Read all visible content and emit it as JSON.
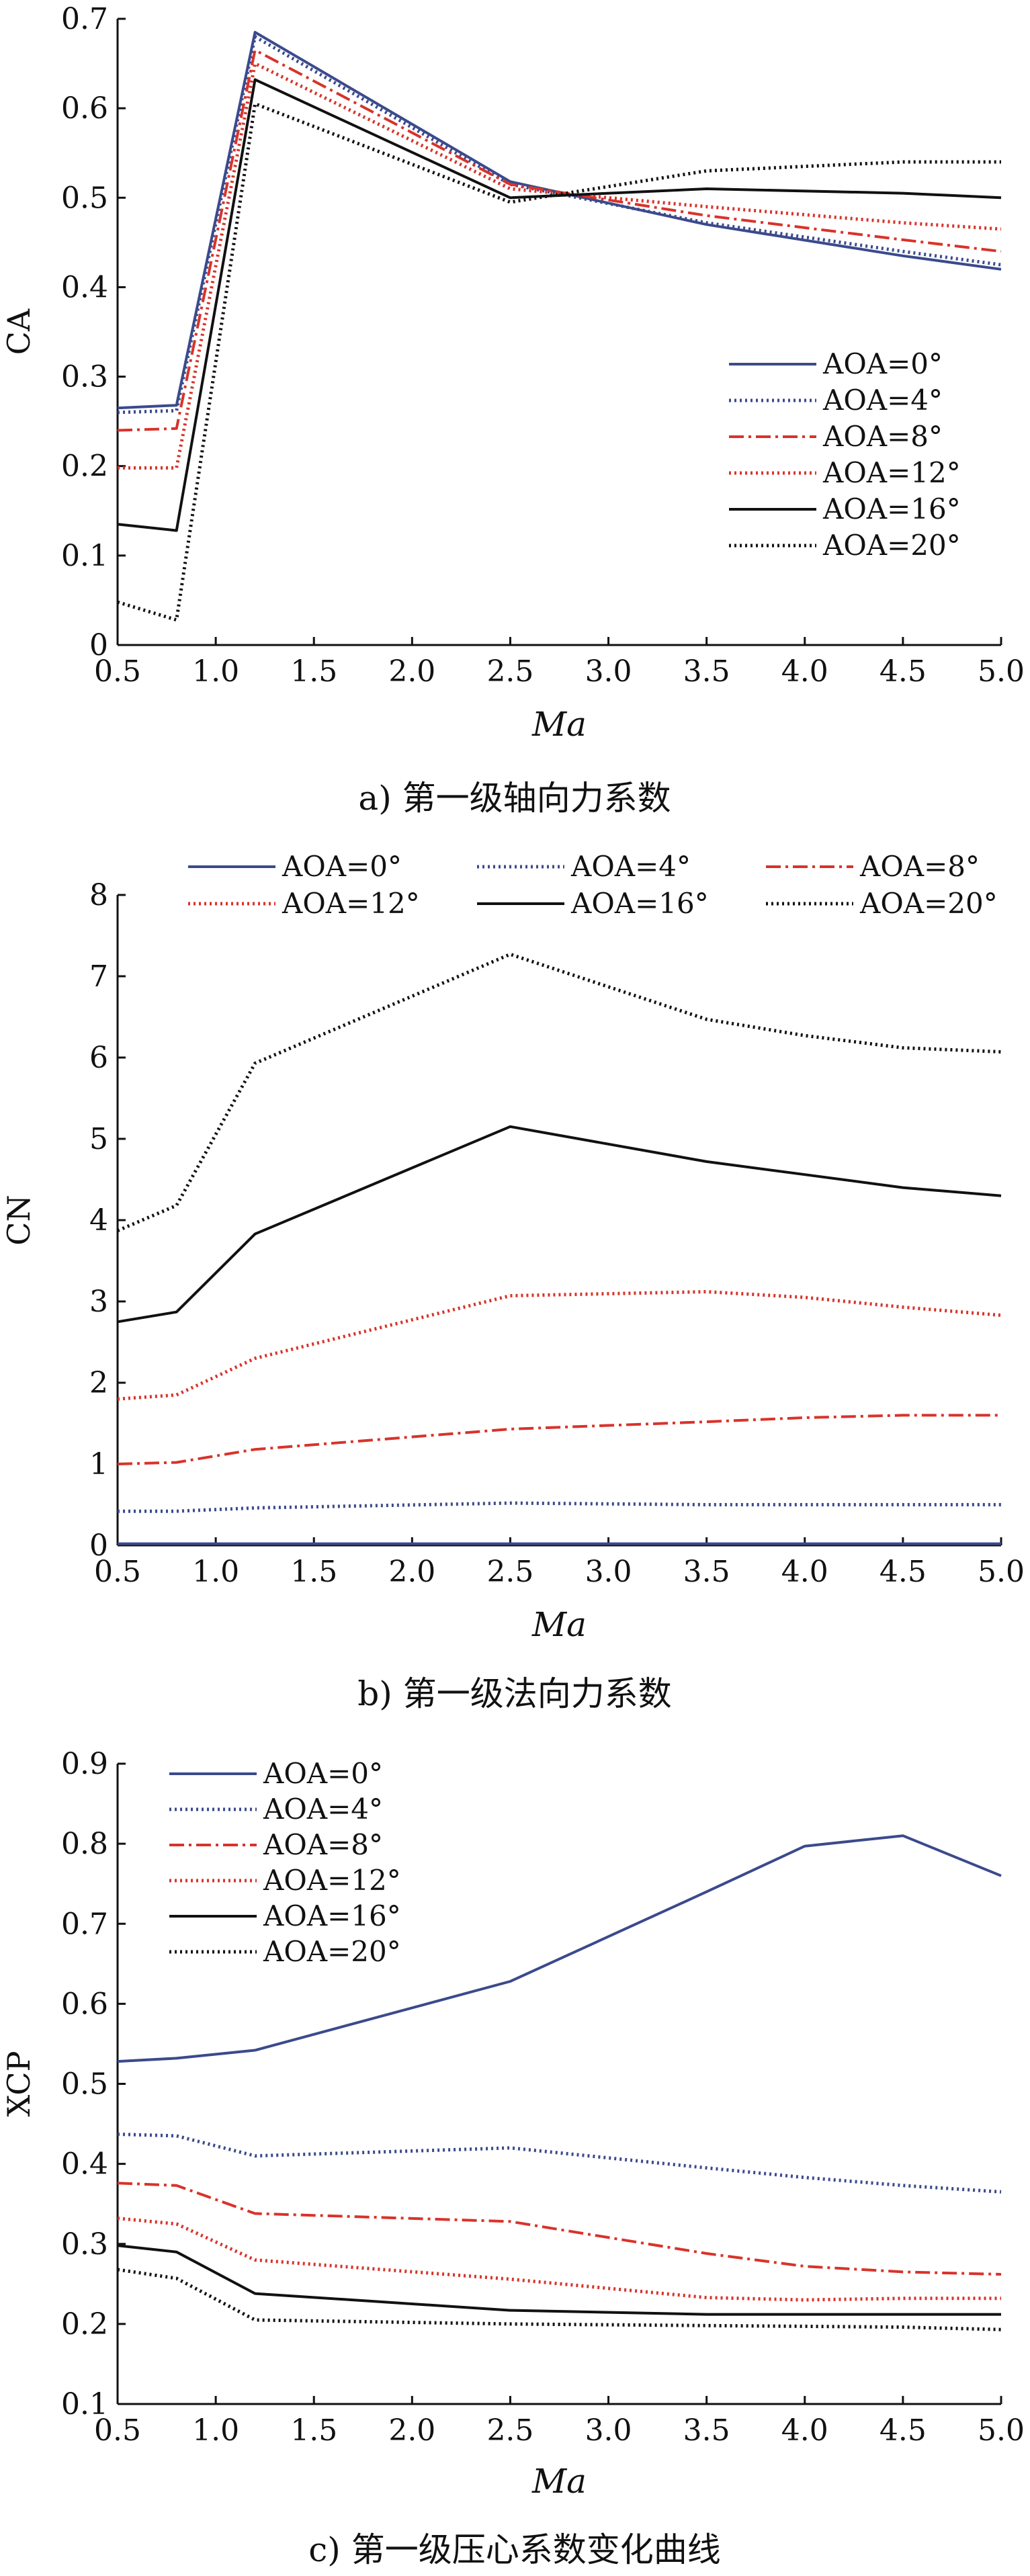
{
  "styles": {
    "AOA=0°": {
      "color": "#3b4a8c",
      "dash": "solid"
    },
    "AOA=4°": {
      "color": "#3b4a8c",
      "dash": "dotted"
    },
    "AOA=8°": {
      "color": "#d8332a",
      "dash": "dashdot"
    },
    "AOA=12°": {
      "color": "#d8332a",
      "dash": "dotted"
    },
    "AOA=16°": {
      "color": "#111111",
      "dash": "solid"
    },
    "AOA=20°": {
      "color": "#111111",
      "dash": "dotted"
    }
  },
  "chart_data": [
    {
      "type": "line",
      "caption": "a) 第一级轴向力系数",
      "xlabel": "Ma",
      "ylabel": "CA",
      "xlim": [
        0.5,
        5.0
      ],
      "ylim": [
        0,
        0.7
      ],
      "xticks": [
        "0.5",
        "1.0",
        "1.5",
        "2.0",
        "2.5",
        "3.0",
        "3.5",
        "4.0",
        "4.5",
        "5.0"
      ],
      "yticks": [
        "0",
        "0.1",
        "0.2",
        "0.3",
        "0.4",
        "0.5",
        "0.6",
        "0.7"
      ],
      "legend_position": "lower-right",
      "x": [
        0.5,
        0.8,
        1.2,
        2.5,
        3.5,
        4.5,
        5.0
      ],
      "series": [
        {
          "name": "AOA=0°",
          "values": [
            0.265,
            0.268,
            0.685,
            0.518,
            0.47,
            0.435,
            0.42
          ]
        },
        {
          "name": "AOA=4°",
          "values": [
            0.26,
            0.262,
            0.68,
            0.515,
            0.472,
            0.44,
            0.425
          ]
        },
        {
          "name": "AOA=8°",
          "values": [
            0.24,
            0.242,
            0.665,
            0.515,
            0.48,
            0.453,
            0.44
          ]
        },
        {
          "name": "AOA=12°",
          "values": [
            0.198,
            0.198,
            0.65,
            0.51,
            0.49,
            0.472,
            0.465
          ]
        },
        {
          "name": "AOA=16°",
          "values": [
            0.135,
            0.128,
            0.632,
            0.5,
            0.51,
            0.505,
            0.5
          ]
        },
        {
          "name": "AOA=20°",
          "values": [
            0.048,
            0.028,
            0.605,
            0.495,
            0.53,
            0.54,
            0.54
          ]
        }
      ]
    },
    {
      "type": "line",
      "caption": "b) 第一级法向力系数",
      "xlabel": "Ma",
      "ylabel": "CN",
      "xlim": [
        0.5,
        5.0
      ],
      "ylim": [
        0,
        8
      ],
      "xticks": [
        "0.5",
        "1.0",
        "1.5",
        "2.0",
        "2.5",
        "3.0",
        "3.5",
        "4.0",
        "4.5",
        "5.0"
      ],
      "yticks": [
        "0",
        "1",
        "2",
        "3",
        "4",
        "5",
        "6",
        "7",
        "8"
      ],
      "legend_position": "top",
      "x": [
        0.5,
        0.8,
        1.2,
        2.5,
        3.5,
        4.0,
        4.5,
        5.0
      ],
      "series": [
        {
          "name": "AOA=0°",
          "values": [
            0.02,
            0.02,
            0.02,
            0.02,
            0.02,
            0.02,
            0.02,
            0.02
          ]
        },
        {
          "name": "AOA=4°",
          "values": [
            0.42,
            0.42,
            0.46,
            0.52,
            0.5,
            0.5,
            0.5,
            0.5
          ]
        },
        {
          "name": "AOA=8°",
          "values": [
            1.0,
            1.02,
            1.18,
            1.43,
            1.52,
            1.57,
            1.6,
            1.6
          ]
        },
        {
          "name": "AOA=12°",
          "values": [
            1.8,
            1.85,
            2.3,
            3.07,
            3.12,
            3.05,
            2.93,
            2.83
          ]
        },
        {
          "name": "AOA=16°",
          "values": [
            2.75,
            2.87,
            3.83,
            5.15,
            4.72,
            4.56,
            4.4,
            4.3
          ]
        },
        {
          "name": "AOA=20°",
          "values": [
            3.87,
            4.18,
            5.93,
            7.27,
            6.47,
            6.27,
            6.12,
            6.07
          ]
        }
      ]
    },
    {
      "type": "line",
      "caption": "c) 第一级压心系数变化曲线",
      "xlabel": "Ma",
      "ylabel": "XCP",
      "xlim": [
        0.5,
        5.0
      ],
      "ylim": [
        0.1,
        0.9
      ],
      "xticks": [
        "0.5",
        "1.0",
        "1.5",
        "2.0",
        "2.5",
        "3.0",
        "3.5",
        "4.0",
        "4.5",
        "5.0"
      ],
      "yticks": [
        "0.1",
        "0.2",
        "0.3",
        "0.4",
        "0.5",
        "0.6",
        "0.7",
        "0.8",
        "0.9"
      ],
      "legend_position": "top-left",
      "x": [
        0.5,
        0.8,
        1.2,
        2.5,
        3.5,
        4.0,
        4.5,
        5.0
      ],
      "series": [
        {
          "name": "AOA=0°",
          "values": [
            0.528,
            0.532,
            0.542,
            0.628,
            0.74,
            0.797,
            0.81,
            0.76
          ]
        },
        {
          "name": "AOA=4°",
          "values": [
            0.437,
            0.435,
            0.41,
            0.42,
            0.395,
            0.383,
            0.373,
            0.365
          ]
        },
        {
          "name": "AOA=8°",
          "values": [
            0.376,
            0.373,
            0.338,
            0.328,
            0.288,
            0.272,
            0.265,
            0.262
          ]
        },
        {
          "name": "AOA=12°",
          "values": [
            0.332,
            0.325,
            0.28,
            0.256,
            0.233,
            0.23,
            0.232,
            0.232
          ]
        },
        {
          "name": "AOA=16°",
          "values": [
            0.298,
            0.29,
            0.238,
            0.217,
            0.212,
            0.212,
            0.212,
            0.212
          ]
        },
        {
          "name": "AOA=20°",
          "values": [
            0.268,
            0.257,
            0.205,
            0.2,
            0.198,
            0.197,
            0.196,
            0.193
          ]
        }
      ]
    }
  ]
}
